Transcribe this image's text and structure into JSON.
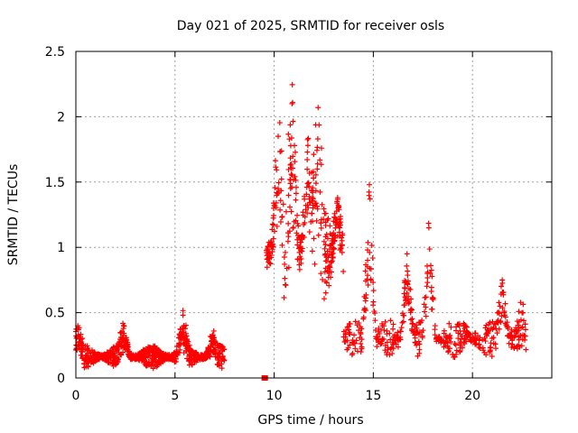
{
  "chart_data": {
    "type": "scatter",
    "title": "Day 021 of 2025, SRMTID for receiver osls",
    "xlabel": "GPS time / hours",
    "ylabel": "SRMTID / TECUs",
    "xlim": [
      0,
      24
    ],
    "ylim": [
      0,
      2.5
    ],
    "xticks": [
      0,
      5,
      10,
      15,
      20
    ],
    "yticks": [
      0,
      0.5,
      1,
      1.5,
      2,
      2.5
    ],
    "xtick_labels": [
      "0",
      "5",
      "10",
      "15",
      "20"
    ],
    "ytick_labels": [
      "0",
      "0.5",
      "1",
      "1.5",
      "2",
      "2.5"
    ],
    "grid": true,
    "marker": "+",
    "color": "#ff0000",
    "segments": [
      {
        "x_start": 0.0,
        "x_end": 7.5,
        "baseline": 0.16,
        "spread": 0.09,
        "density": 110,
        "peaks": [
          [
            0.1,
            0.4
          ],
          [
            2.4,
            0.38
          ],
          [
            5.4,
            0.48
          ],
          [
            6.9,
            0.33
          ]
        ]
      },
      {
        "x_start": 9.6,
        "x_end": 13.5,
        "baseline": 0.95,
        "spread": 0.45,
        "density": 90,
        "peaks": [
          [
            10.2,
            1.85
          ],
          [
            10.9,
            2.1
          ],
          [
            11.7,
            1.78
          ],
          [
            12.2,
            1.83
          ],
          [
            13.2,
            1.38
          ]
        ]
      },
      {
        "x_start": 13.5,
        "x_end": 22.7,
        "baseline": 0.3,
        "spread": 0.15,
        "density": 55,
        "peaks": [
          [
            14.8,
            1.48
          ],
          [
            16.7,
            0.95
          ],
          [
            17.8,
            1.15
          ],
          [
            19.6,
            0.38
          ],
          [
            21.5,
            0.75
          ],
          [
            22.5,
            0.5
          ]
        ]
      }
    ],
    "outliers": [
      [
        9.5,
        0.0
      ],
      [
        9.55,
        0.0
      ]
    ]
  }
}
